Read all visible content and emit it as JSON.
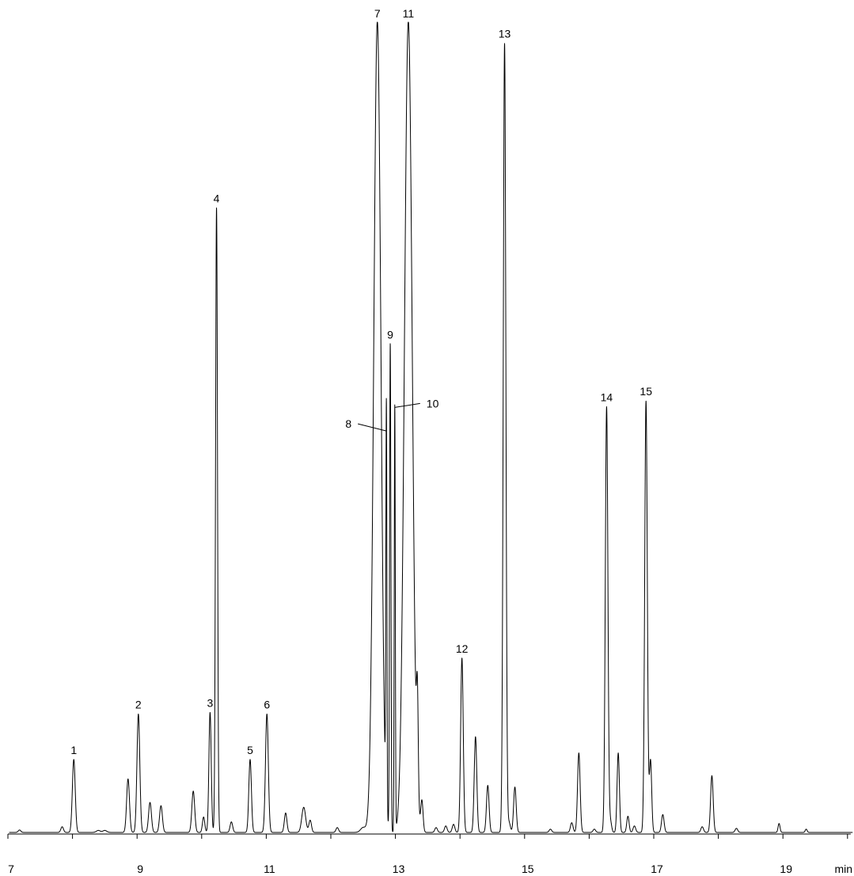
{
  "chart_data": {
    "type": "line",
    "title": "",
    "xlabel": "",
    "ylabel": "",
    "x_unit": "min",
    "xlim": [
      7,
      20.1
    ],
    "ylim": [
      0,
      100
    ],
    "x_ticks": [
      7,
      8,
      9,
      10,
      11,
      12,
      13,
      14,
      15,
      16,
      17,
      18,
      19,
      20
    ],
    "x_tick_labels": [
      "7",
      "",
      "9",
      "",
      "11",
      "",
      "13",
      "",
      "15",
      "",
      "17",
      "",
      "19",
      ""
    ],
    "grid": false,
    "legend": "none",
    "baseline": 0.1,
    "peaks": [
      {
        "label": "1",
        "rt": 8.02,
        "height": 9.0,
        "width": 0.022
      },
      {
        "label": "2",
        "rt": 9.02,
        "height": 14.6,
        "width": 0.022
      },
      {
        "label": "3",
        "rt": 10.13,
        "height": 14.8,
        "width": 0.018
      },
      {
        "label": "4",
        "rt": 10.23,
        "height": 77.0,
        "width": 0.015
      },
      {
        "label": "5",
        "rt": 10.75,
        "height": 9.0,
        "width": 0.02
      },
      {
        "label": "6",
        "rt": 11.01,
        "height": 14.6,
        "width": 0.022
      },
      {
        "label": "7",
        "rt": 12.72,
        "height": 100.0,
        "width": 0.055,
        "offscale": true
      },
      {
        "label": "8",
        "rt": 12.86,
        "height": 49.6,
        "width": 0.008
      },
      {
        "label": "9",
        "rt": 12.92,
        "height": 60.2,
        "width": 0.01
      },
      {
        "label": "10",
        "rt": 12.99,
        "height": 52.5,
        "width": 0.008
      },
      {
        "label": "11",
        "rt": 13.2,
        "height": 100.0,
        "width": 0.06,
        "offscale": true
      },
      {
        "label": "12",
        "rt": 14.03,
        "height": 21.5,
        "width": 0.02
      },
      {
        "label": "13",
        "rt": 14.69,
        "height": 97.3,
        "width": 0.02
      },
      {
        "label": "14",
        "rt": 16.27,
        "height": 52.5,
        "width": 0.02
      },
      {
        "label": "15",
        "rt": 16.88,
        "height": 53.2,
        "width": 0.02
      }
    ],
    "minor_peaks": [
      {
        "rt": 7.18,
        "height": 0.3,
        "width": 0.02
      },
      {
        "rt": 7.84,
        "height": 0.7,
        "width": 0.02
      },
      {
        "rt": 8.4,
        "height": 0.25,
        "width": 0.03
      },
      {
        "rt": 8.5,
        "height": 0.25,
        "width": 0.03
      },
      {
        "rt": 8.86,
        "height": 6.6,
        "width": 0.022
      },
      {
        "rt": 9.2,
        "height": 3.7,
        "width": 0.022
      },
      {
        "rt": 9.37,
        "height": 3.3,
        "width": 0.022
      },
      {
        "rt": 9.87,
        "height": 5.1,
        "width": 0.022
      },
      {
        "rt": 10.03,
        "height": 1.9,
        "width": 0.018
      },
      {
        "rt": 10.46,
        "height": 1.3,
        "width": 0.02
      },
      {
        "rt": 11.3,
        "height": 2.4,
        "width": 0.02
      },
      {
        "rt": 11.58,
        "height": 3.1,
        "width": 0.03
      },
      {
        "rt": 11.68,
        "height": 1.5,
        "width": 0.02
      },
      {
        "rt": 12.1,
        "height": 0.6,
        "width": 0.02
      },
      {
        "rt": 12.5,
        "height": 0.6,
        "width": 0.04
      },
      {
        "rt": 13.34,
        "height": 12.7,
        "width": 0.014
      },
      {
        "rt": 13.41,
        "height": 3.8,
        "width": 0.018
      },
      {
        "rt": 13.63,
        "height": 0.6,
        "width": 0.02
      },
      {
        "rt": 13.78,
        "height": 0.8,
        "width": 0.02
      },
      {
        "rt": 13.9,
        "height": 1.0,
        "width": 0.02
      },
      {
        "rt": 14.24,
        "height": 11.8,
        "width": 0.02
      },
      {
        "rt": 14.43,
        "height": 5.8,
        "width": 0.02
      },
      {
        "rt": 14.85,
        "height": 5.6,
        "width": 0.02
      },
      {
        "rt": 14.76,
        "height": 1.2,
        "width": 0.02
      },
      {
        "rt": 15.4,
        "height": 0.4,
        "width": 0.02
      },
      {
        "rt": 15.73,
        "height": 1.2,
        "width": 0.02
      },
      {
        "rt": 15.84,
        "height": 9.8,
        "width": 0.02
      },
      {
        "rt": 16.08,
        "height": 0.4,
        "width": 0.02
      },
      {
        "rt": 16.33,
        "height": 1.3,
        "width": 0.018
      },
      {
        "rt": 16.45,
        "height": 9.8,
        "width": 0.018
      },
      {
        "rt": 16.6,
        "height": 2.0,
        "width": 0.018
      },
      {
        "rt": 16.7,
        "height": 0.8,
        "width": 0.02
      },
      {
        "rt": 16.95,
        "height": 8.9,
        "width": 0.018
      },
      {
        "rt": 17.14,
        "height": 2.2,
        "width": 0.02
      },
      {
        "rt": 17.75,
        "height": 0.7,
        "width": 0.02
      },
      {
        "rt": 17.9,
        "height": 7.0,
        "width": 0.02
      },
      {
        "rt": 18.28,
        "height": 0.5,
        "width": 0.02
      },
      {
        "rt": 18.94,
        "height": 1.1,
        "width": 0.015
      },
      {
        "rt": 19.36,
        "height": 0.4,
        "width": 0.015
      }
    ]
  }
}
